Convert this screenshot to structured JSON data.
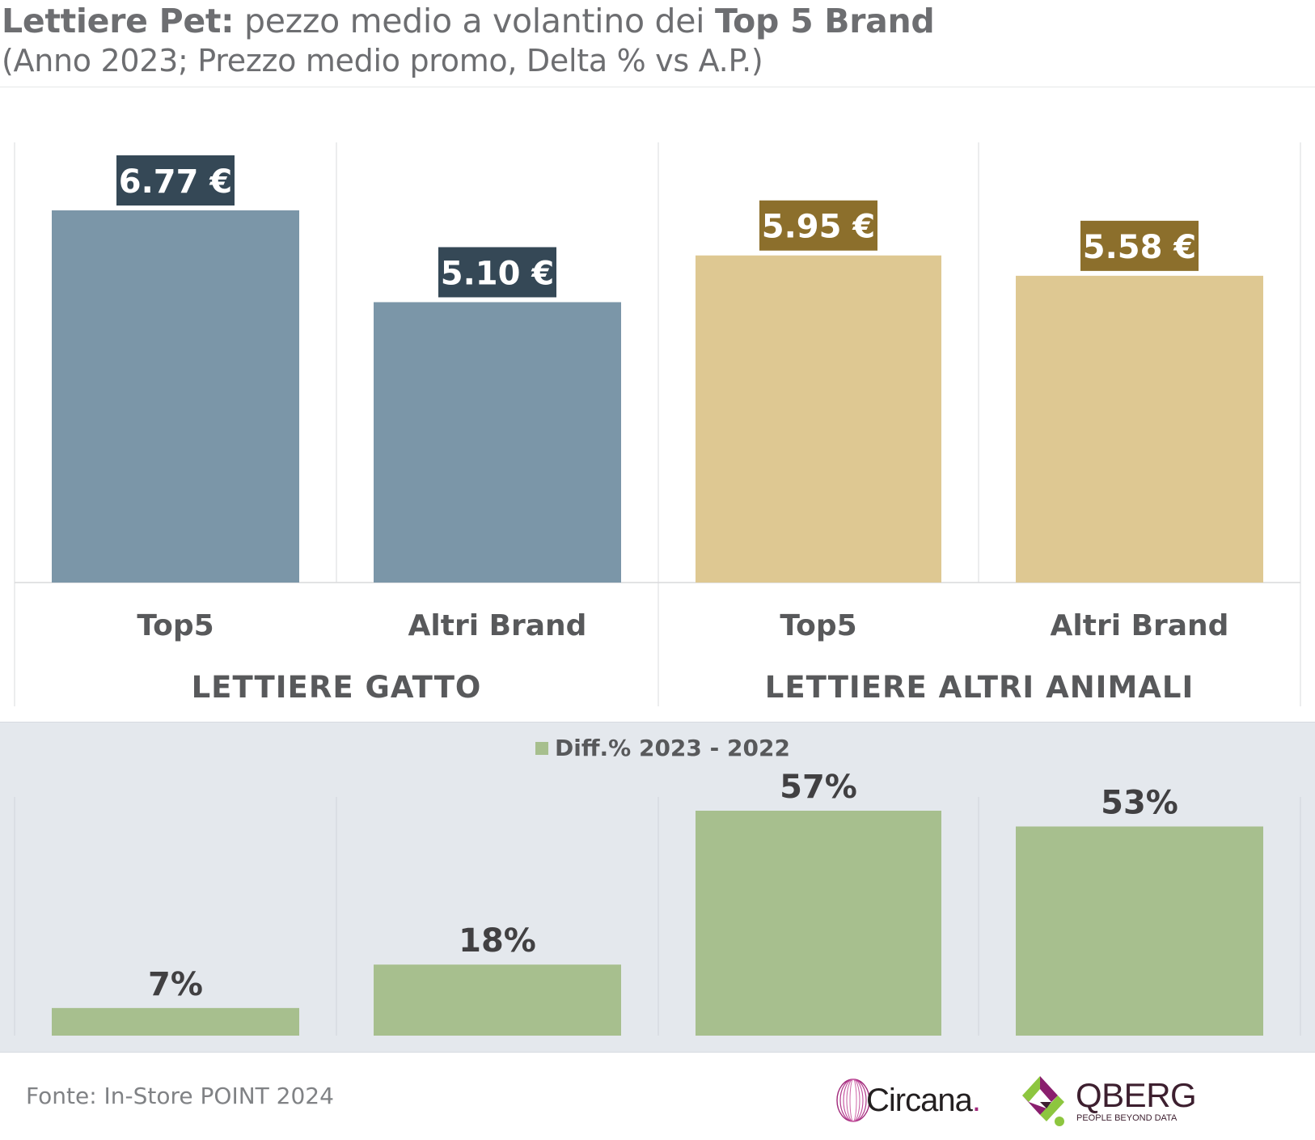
{
  "title": {
    "bold_prefix": "Lettiere Pet:",
    "middle": " pezzo medio a volantino dei ",
    "bold_suffix": "Top 5 Brand",
    "subtitle": "(Anno 2023; Prezzo medio promo, Delta % vs A.P.)"
  },
  "colors": {
    "gatto_bar": "#7b96a8",
    "gatto_label_bg": "#354856",
    "altri_bar": "#dec892",
    "altri_label_bg": "#8c6f2c",
    "diff_bar": "#a7bf8e",
    "text_dark": "#58595b",
    "bottom_panel_bg": "#e4e8ed"
  },
  "chart_data": [
    {
      "type": "bar",
      "groups": [
        "LETTIERE GATTO",
        "LETTIERE ALTRI ANIMALI"
      ],
      "categories": [
        "Top5",
        "Altri Brand",
        "Top5",
        "Altri Brand"
      ],
      "values": [
        6.77,
        5.1,
        5.95,
        5.58
      ],
      "value_labels": [
        "6.77 €",
        "5.10 €",
        "5.95 €",
        "5.58 €"
      ],
      "ylim": [
        0,
        7.5
      ],
      "grid": false
    },
    {
      "type": "bar",
      "legend": [
        "Diff.% 2023 - 2022"
      ],
      "legend_position": "top-center",
      "categories": [
        "Top5",
        "Altri Brand",
        "Top5",
        "Altri Brand"
      ],
      "values": [
        7,
        18,
        57,
        53
      ],
      "value_labels": [
        "7%",
        "18%",
        "57%",
        "53%"
      ],
      "ylim": [
        0,
        57
      ],
      "grid": false
    }
  ],
  "footer": {
    "source": "Fonte: In-Store POINT 2024",
    "logo1_text": "Circana",
    "logo1_dot": ".",
    "logo2_text": "QBERG",
    "logo2_tagline": "PEOPLE BEYOND DATA"
  }
}
